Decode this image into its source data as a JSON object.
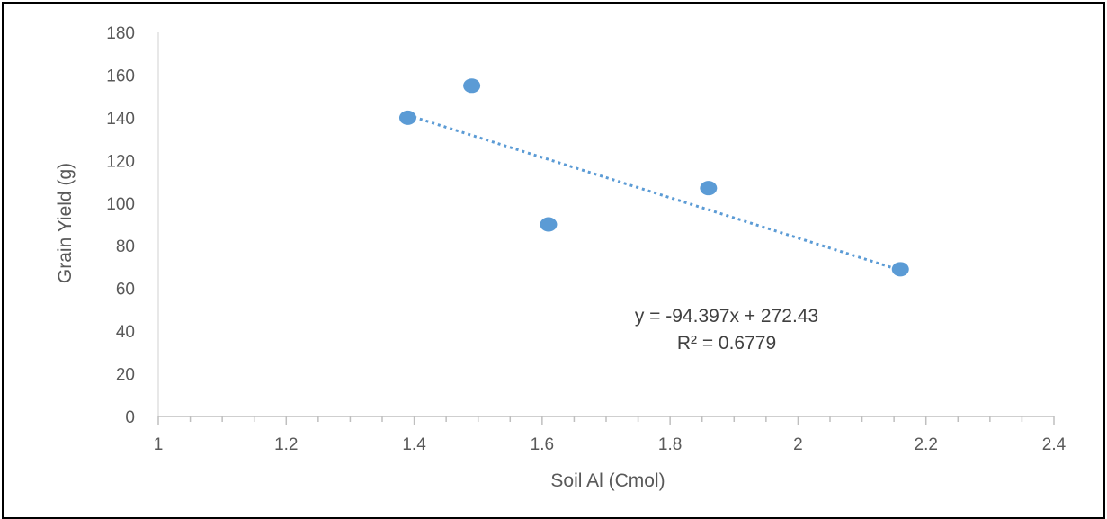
{
  "chart_data": {
    "type": "scatter",
    "title": "",
    "xlabel": "Soil Al (Cmol)",
    "ylabel": "Grain Yield (g)",
    "xlim": [
      1,
      2.4
    ],
    "ylim": [
      0,
      180
    ],
    "x_ticks": [
      "1",
      "1.2",
      "1.4",
      "1.6",
      "1.8",
      "2",
      "2.2",
      "2.4"
    ],
    "y_ticks": [
      "0",
      "20",
      "40",
      "60",
      "80",
      "100",
      "120",
      "140",
      "160",
      "180"
    ],
    "grid": false,
    "legend": "none",
    "series": [
      {
        "points": [
          {
            "x": 1.39,
            "y": 140
          },
          {
            "x": 1.49,
            "y": 155
          },
          {
            "x": 1.61,
            "y": 90
          },
          {
            "x": 1.86,
            "y": 107
          },
          {
            "x": 2.16,
            "y": 69
          }
        ],
        "color": "#5b9bd5"
      }
    ],
    "trendline": {
      "type": "linear",
      "slope": -94.397,
      "intercept": 272.43,
      "x_range": [
        1.39,
        2.16
      ],
      "color": "#5b9bd5",
      "style": "dotted",
      "equation": "y = -94.397x + 272.43",
      "r_squared": "R² = 0.6779"
    }
  }
}
